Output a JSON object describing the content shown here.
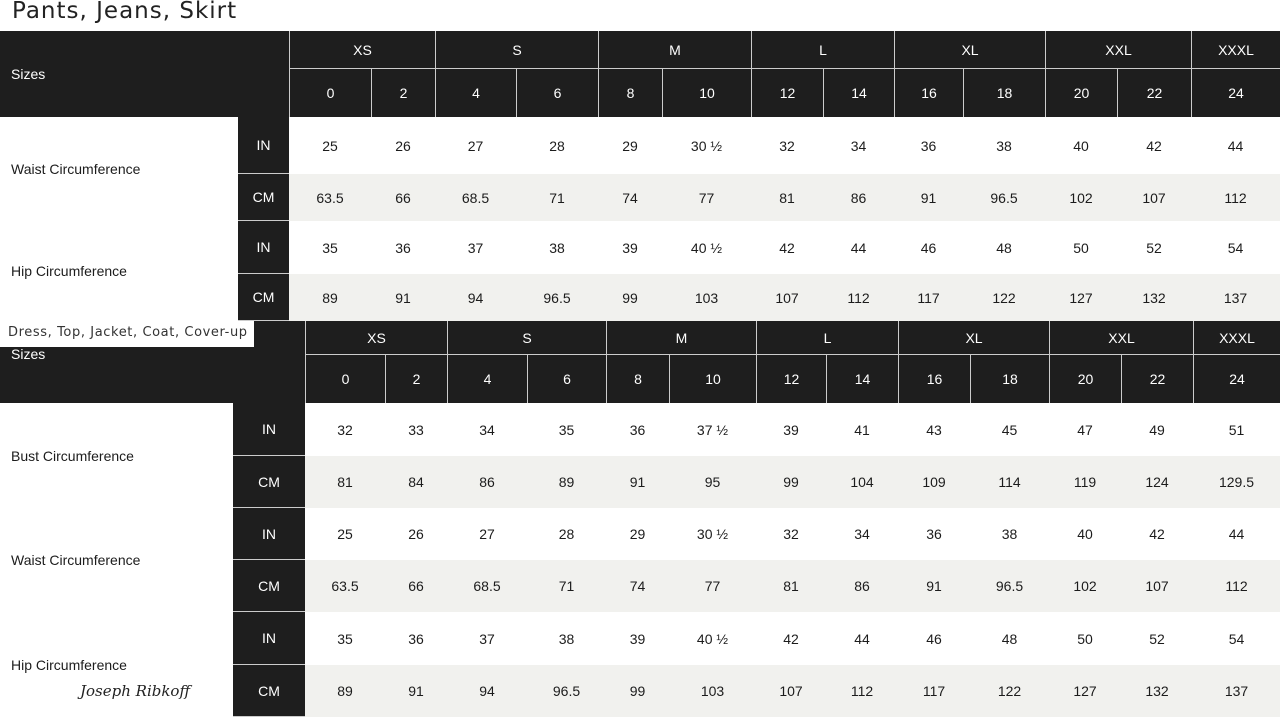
{
  "pants": {
    "title": "Pants, Jeans, Skirt",
    "sizes_label": "Sizes",
    "groups": [
      "XS",
      "S",
      "M",
      "L",
      "XL",
      "XXL",
      "XXXL"
    ],
    "sizes": [
      "0",
      "2",
      "4",
      "6",
      "8",
      "10",
      "12",
      "14",
      "16",
      "18",
      "20",
      "22",
      "24"
    ],
    "measures": [
      {
        "label": "Waist Circumference",
        "rows": [
          {
            "unit": "IN",
            "values": [
              "25",
              "26",
              "27",
              "28",
              "29",
              "30 ½",
              "32",
              "34",
              "36",
              "38",
              "40",
              "42",
              "44"
            ]
          },
          {
            "unit": "CM",
            "values": [
              "63.5",
              "66",
              "68.5",
              "71",
              "74",
              "77",
              "81",
              "86",
              "91",
              "96.5",
              "102",
              "107",
              "112"
            ]
          }
        ]
      },
      {
        "label": "Hip Circumference",
        "rows": [
          {
            "unit": "IN",
            "values": [
              "35",
              "36",
              "37",
              "38",
              "39",
              "40 ½",
              "42",
              "44",
              "46",
              "48",
              "50",
              "52",
              "54"
            ]
          },
          {
            "unit": "CM",
            "values": [
              "89",
              "91",
              "94",
              "96.5",
              "99",
              "103",
              "107",
              "112",
              "117",
              "122",
              "127",
              "132",
              "137"
            ]
          }
        ]
      }
    ]
  },
  "dress": {
    "title": "Dress, Top, Jacket, Coat, Cover-up",
    "sizes_label": "Sizes",
    "groups": [
      "XS",
      "S",
      "M",
      "L",
      "XL",
      "XXL",
      "XXXL"
    ],
    "sizes": [
      "0",
      "2",
      "4",
      "6",
      "8",
      "10",
      "12",
      "14",
      "16",
      "18",
      "20",
      "22",
      "24"
    ],
    "measures": [
      {
        "label": "Bust Circumference",
        "rows": [
          {
            "unit": "IN",
            "values": [
              "32",
              "33",
              "34",
              "35",
              "36",
              "37 ½",
              "39",
              "41",
              "43",
              "45",
              "47",
              "49",
              "51"
            ]
          },
          {
            "unit": "CM",
            "values": [
              "81",
              "84",
              "86",
              "89",
              "91",
              "95",
              "99",
              "104",
              "109",
              "114",
              "119",
              "124",
              "129.5"
            ]
          }
        ]
      },
      {
        "label": "Waist Circumference",
        "rows": [
          {
            "unit": "IN",
            "values": [
              "25",
              "26",
              "27",
              "28",
              "29",
              "30 ½",
              "32",
              "34",
              "36",
              "38",
              "40",
              "42",
              "44"
            ]
          },
          {
            "unit": "CM",
            "values": [
              "63.5",
              "66",
              "68.5",
              "71",
              "74",
              "77",
              "81",
              "86",
              "91",
              "96.5",
              "102",
              "107",
              "112"
            ]
          }
        ]
      },
      {
        "label": "Hip Circumference",
        "rows": [
          {
            "unit": "IN",
            "values": [
              "35",
              "36",
              "37",
              "38",
              "39",
              "40 ½",
              "42",
              "44",
              "46",
              "48",
              "50",
              "52",
              "54"
            ]
          },
          {
            "unit": "CM",
            "values": [
              "89",
              "91",
              "94",
              "96.5",
              "99",
              "103",
              "107",
              "112",
              "117",
              "122",
              "127",
              "132",
              "137"
            ]
          }
        ]
      }
    ]
  },
  "brand": {
    "signature": "Joseph Ribkoff"
  }
}
